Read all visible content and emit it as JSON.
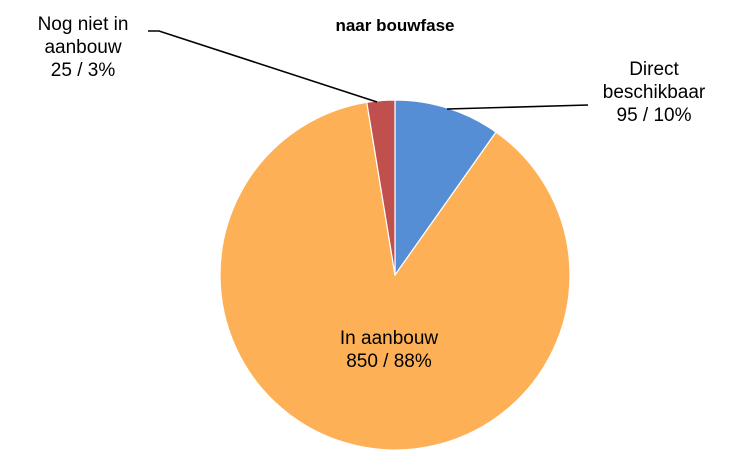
{
  "chart_data": {
    "type": "pie",
    "title": "naar bouwfase",
    "categories": [
      "Direct beschikbaar",
      "In aanbouw",
      "Nog niet in aanbouw"
    ],
    "values": [
      95,
      850,
      25
    ],
    "percentages": [
      10,
      88,
      3
    ],
    "colors": [
      "#558ED5",
      "#FDB055",
      "#C0504D"
    ],
    "slices": [
      {
        "name": "Direct beschikbaar",
        "value": 95,
        "percent": 10,
        "color": "#558ED5",
        "label_lines": [
          "Direct",
          "beschikbaar",
          "95 / 10%"
        ]
      },
      {
        "name": "In aanbouw",
        "value": 850,
        "percent": 88,
        "color": "#FDB055",
        "label_lines": [
          "In aanbouw",
          "850 / 88%"
        ]
      },
      {
        "name": "Nog niet in aanbouw",
        "value": 25,
        "percent": 3,
        "color": "#C0504D",
        "label_lines": [
          "Nog niet in",
          "aanbouw",
          "25 / 3%"
        ]
      }
    ],
    "legend": "none"
  }
}
